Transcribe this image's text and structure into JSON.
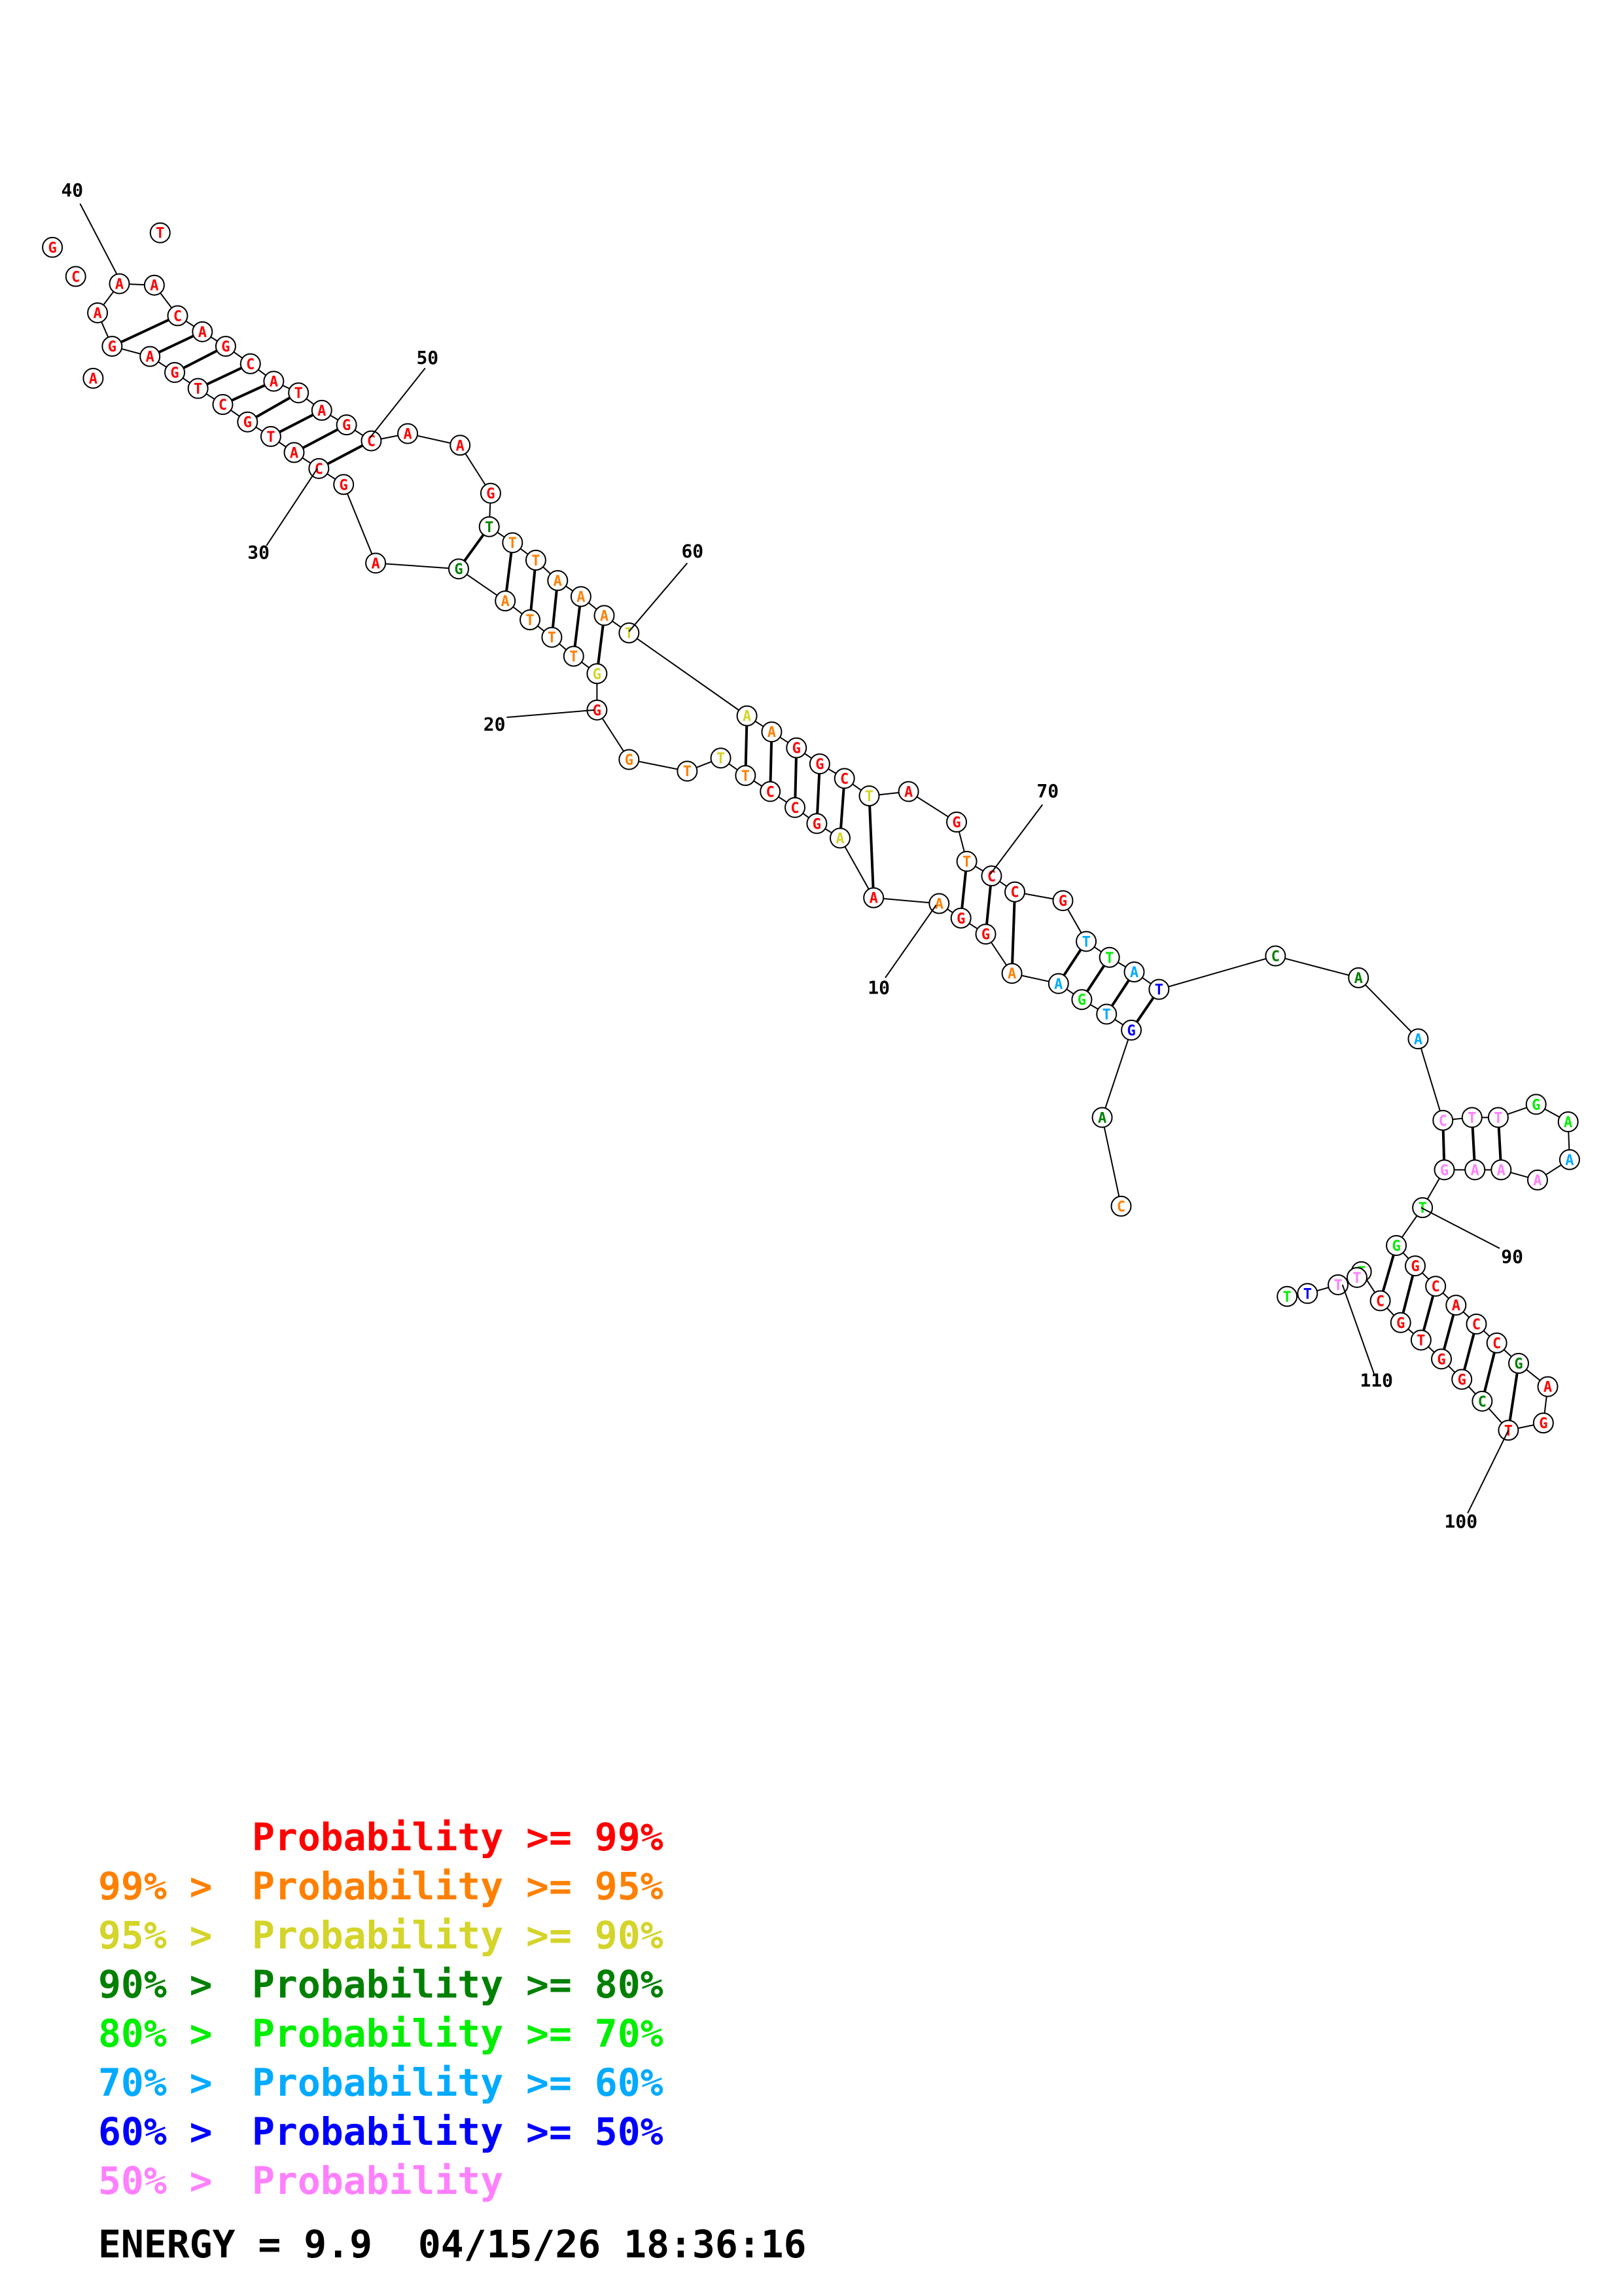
{
  "colors": {
    "r": "#ff0000",
    "o": "#ff8000",
    "y": "#d4d42a",
    "g": "#008000",
    "l": "#00ee00",
    "c": "#00aaff",
    "b": "#0000ff",
    "p": "#ff80ff"
  },
  "nodes": [
    {
      "base": "A",
      "color": "r"
    },
    {
      "base": "A",
      "color": "r"
    },
    {
      "base": "C",
      "color": "r"
    },
    {
      "base": "A",
      "color": "r"
    },
    {
      "base": "G",
      "color": "r"
    },
    {
      "base": "C",
      "color": "r"
    },
    {
      "base": "A",
      "color": "r"
    },
    {
      "base": "T",
      "color": "r"
    },
    {
      "base": "A",
      "color": "r"
    },
    {
      "base": "G",
      "color": "r"
    },
    {
      "base": "C",
      "color": "r"
    },
    {
      "base": "A",
      "color": "r"
    },
    {
      "base": "A",
      "color": "r"
    },
    {
      "base": "G",
      "color": "r"
    },
    {
      "base": "T",
      "color": "g"
    },
    {
      "base": "T",
      "color": "o"
    },
    {
      "base": "T",
      "color": "o"
    },
    {
      "base": "A",
      "color": "o"
    },
    {
      "base": "A",
      "color": "o"
    },
    {
      "base": "A",
      "color": "o"
    },
    {
      "base": "T",
      "color": "y"
    },
    {
      "base": "A",
      "color": "y"
    },
    {
      "base": "A",
      "color": "o"
    },
    {
      "base": "G",
      "color": "r"
    },
    {
      "base": "G",
      "color": "r"
    },
    {
      "base": "C",
      "color": "r"
    },
    {
      "base": "T",
      "color": "y"
    },
    {
      "base": "A",
      "color": "r"
    },
    {
      "base": "G",
      "color": "r"
    },
    {
      "base": "T",
      "color": "o"
    },
    {
      "base": "C",
      "color": "r"
    },
    {
      "base": "C",
      "color": "r"
    },
    {
      "base": "G",
      "color": "r"
    },
    {
      "base": "T",
      "color": "c"
    },
    {
      "base": "T",
      "color": "l"
    },
    {
      "base": "A",
      "color": "c"
    },
    {
      "base": "T",
      "color": "b"
    },
    {
      "base": "C",
      "color": "g"
    },
    {
      "base": "A",
      "color": "g"
    },
    {
      "base": "A",
      "color": "c"
    },
    {
      "base": "C",
      "color": "p"
    },
    {
      "base": "T",
      "color": "p"
    },
    {
      "base": "T",
      "color": "p"
    },
    {
      "base": "G",
      "color": "l"
    },
    {
      "base": "A",
      "color": "l"
    },
    {
      "base": "A",
      "color": "c"
    },
    {
      "base": "A",
      "color": "p"
    },
    {
      "base": "A",
      "color": "p"
    },
    {
      "base": "A",
      "color": "p"
    },
    {
      "base": "G",
      "color": "p"
    },
    {
      "base": "T",
      "color": "l"
    },
    {
      "base": "G",
      "color": "l"
    },
    {
      "base": "G",
      "color": "r"
    },
    {
      "base": "C",
      "color": "r"
    },
    {
      "base": "A",
      "color": "r"
    },
    {
      "base": "C",
      "color": "r"
    },
    {
      "base": "C",
      "color": "r"
    },
    {
      "base": "G",
      "color": "g"
    },
    {
      "base": "A",
      "color": "r"
    },
    {
      "base": "G",
      "color": "r"
    },
    {
      "base": "T",
      "color": "r"
    },
    {
      "base": "C",
      "color": "g"
    },
    {
      "base": "G",
      "color": "r"
    },
    {
      "base": "G",
      "color": "r"
    },
    {
      "base": "T",
      "color": "r"
    },
    {
      "base": "G",
      "color": "r"
    },
    {
      "base": "C",
      "color": "r"
    },
    {
      "base": "T",
      "color": "l"
    },
    {
      "base": "T",
      "color": "p"
    },
    {
      "base": "T",
      "color": "p"
    },
    {
      "base": "T",
      "color": "b"
    },
    {
      "base": "T",
      "color": "l"
    },
    {
      "base": "G",
      "color": "b"
    },
    {
      "base": "T",
      "color": "c"
    },
    {
      "base": "G",
      "color": "l"
    },
    {
      "base": "A",
      "color": "c"
    },
    {
      "base": "A",
      "color": "o"
    },
    {
      "base": "G",
      "color": "r"
    },
    {
      "base": "G",
      "color": "r"
    },
    {
      "base": "A",
      "color": "o"
    },
    {
      "base": "A",
      "color": "r"
    },
    {
      "base": "A",
      "color": "y"
    },
    {
      "base": "G",
      "color": "r"
    },
    {
      "base": "C",
      "color": "r"
    },
    {
      "base": "C",
      "color": "r"
    },
    {
      "base": "T",
      "color": "o"
    },
    {
      "base": "T",
      "color": "y"
    },
    {
      "base": "T",
      "color": "o"
    },
    {
      "base": "G",
      "color": "o"
    },
    {
      "base": "G",
      "color": "r"
    },
    {
      "base": "G",
      "color": "y"
    },
    {
      "base": "T",
      "color": "o"
    },
    {
      "base": "T",
      "color": "o"
    },
    {
      "base": "T",
      "color": "o"
    },
    {
      "base": "A",
      "color": "o"
    },
    {
      "base": "G",
      "color": "g"
    },
    {
      "base": "A",
      "color": "r"
    },
    {
      "base": "G",
      "color": "r"
    },
    {
      "base": "C",
      "color": "r"
    },
    {
      "base": "A",
      "color": "r"
    },
    {
      "base": "T",
      "color": "r"
    },
    {
      "base": "G",
      "color": "r"
    },
    {
      "base": "C",
      "color": "r"
    },
    {
      "base": "T",
      "color": "r"
    },
    {
      "base": "G",
      "color": "r"
    },
    {
      "base": "A",
      "color": "r"
    },
    {
      "base": "G",
      "color": "r"
    },
    {
      "base": "A",
      "color": "r"
    },
    {
      "base": "C",
      "color": "r"
    },
    {
      "base": "G",
      "color": "r"
    },
    {
      "base": "T",
      "color": "r"
    },
    {
      "base": "A",
      "color": "r"
    },
    {
      "base": "A",
      "color": "r"
    },
    {
      "base": "C",
      "color": "o"
    },
    {
      "base": "A",
      "color": "g"
    }
  ],
  "numbers": [
    "40",
    "50",
    "30",
    "60",
    "20",
    "70",
    "10",
    "90",
    "110",
    "100"
  ],
  "legend": [
    {
      "prefix": "",
      "label": "Probability >= 99%",
      "color": "r"
    },
    {
      "prefix": "99% >",
      "label": "Probability >= 95%",
      "color": "o"
    },
    {
      "prefix": "95% >",
      "label": "Probability >= 90%",
      "color": "y"
    },
    {
      "prefix": "90% >",
      "label": "Probability >= 80%",
      "color": "g"
    },
    {
      "prefix": "80% >",
      "label": "Probability >= 70%",
      "color": "l"
    },
    {
      "prefix": "70% >",
      "label": "Probability >= 60%",
      "color": "c"
    },
    {
      "prefix": "60% >",
      "label": "Probability >= 50%",
      "color": "b"
    },
    {
      "prefix": "50% >",
      "label": "Probability",
      "color": "p"
    }
  ],
  "footer": {
    "energy": "ENERGY = 9.9",
    "timestamp": "04/15/26 18:36:16"
  }
}
